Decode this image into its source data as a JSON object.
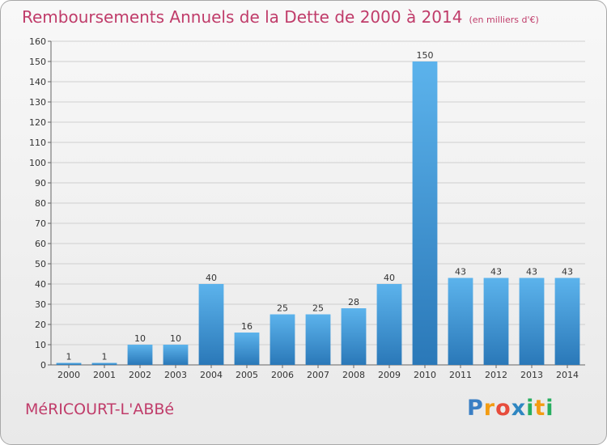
{
  "header": {
    "title": "Remboursements Annuels de la Dette de 2000 à 2014",
    "unit": "(en milliers d'€)"
  },
  "footer": {
    "commune": "MéRICOURT-L'ABBé",
    "logo_letters": [
      "P",
      "r",
      "o",
      "x",
      "i",
      "t",
      "i"
    ],
    "logo_colors": [
      "#3a7fc4",
      "#f39c12",
      "#e74c3c",
      "#2e86c1",
      "#27ae60",
      "#f39c12",
      "#27ae60"
    ]
  },
  "chart_data": {
    "type": "bar",
    "title": "Remboursements Annuels de la Dette de 2000 à 2014",
    "subtitle": "(en milliers d'€)",
    "xlabel": "",
    "ylabel": "",
    "categories": [
      "2000",
      "2001",
      "2002",
      "2003",
      "2004",
      "2005",
      "2006",
      "2007",
      "2008",
      "2009",
      "2010",
      "2011",
      "2012",
      "2013",
      "2014"
    ],
    "values": [
      1,
      1,
      10,
      10,
      40,
      16,
      25,
      25,
      28,
      40,
      150,
      43,
      43,
      43,
      43
    ],
    "ylim": [
      0,
      160
    ],
    "yticks": [
      0,
      10,
      20,
      30,
      40,
      50,
      60,
      70,
      80,
      90,
      100,
      110,
      120,
      130,
      140,
      150,
      160
    ],
    "grid": true,
    "bar_color": "#3a8fd6"
  }
}
